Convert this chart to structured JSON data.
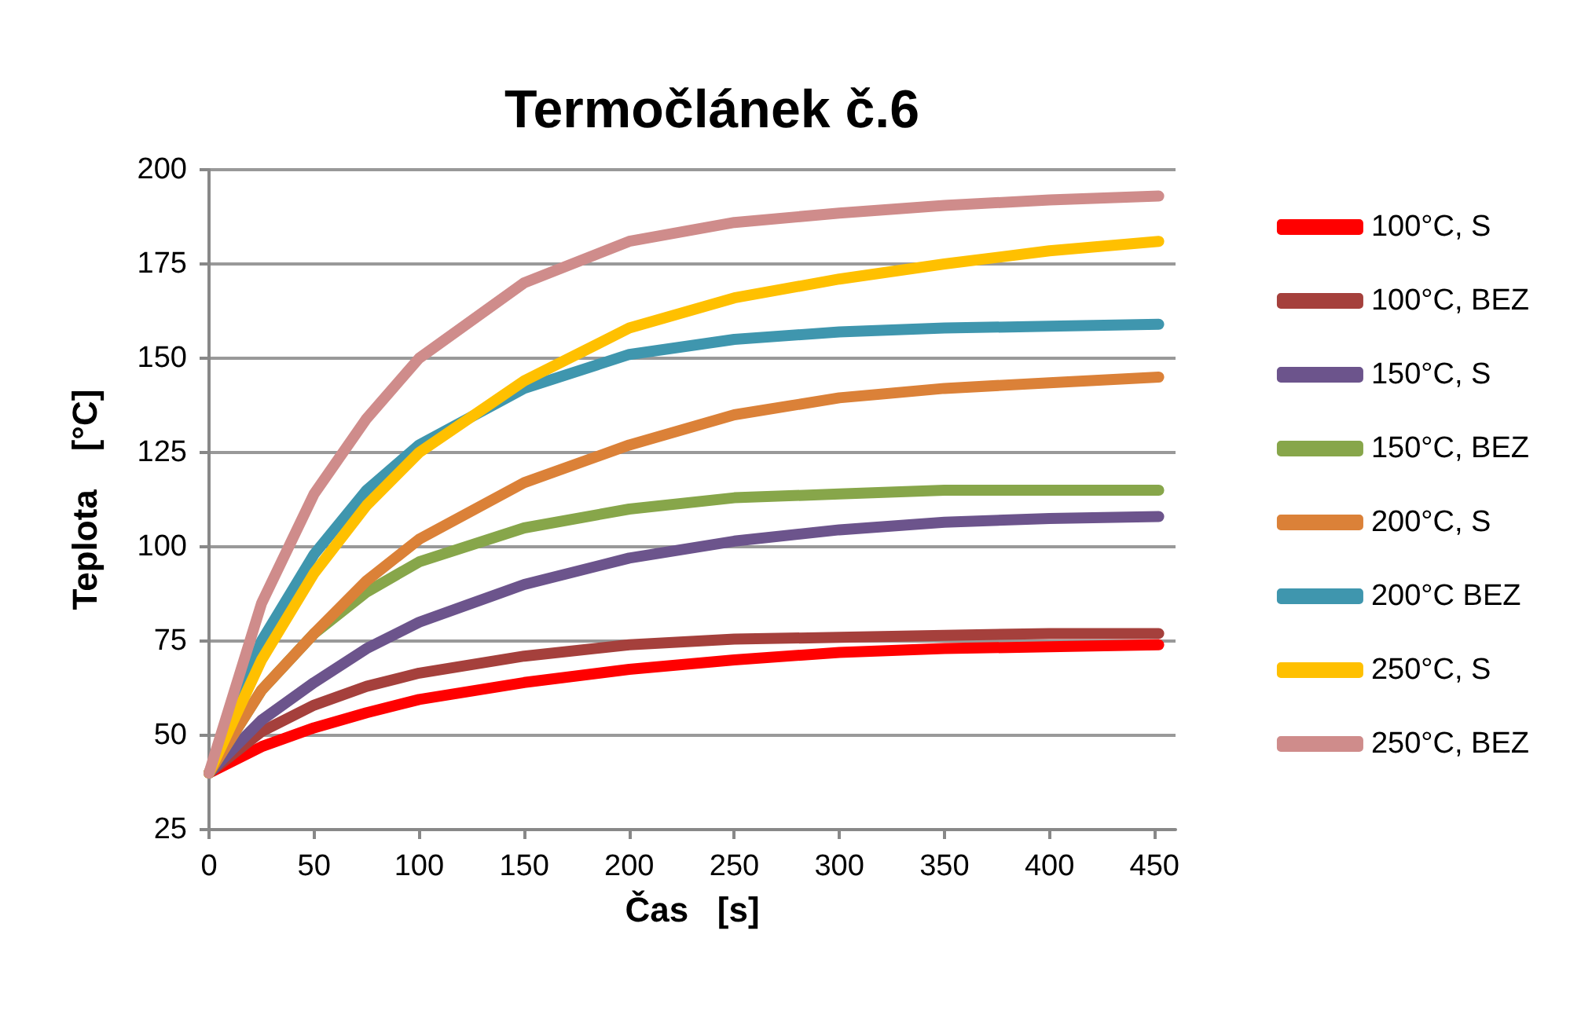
{
  "chart_data": {
    "type": "line",
    "title": "Termočlánek č.6",
    "xlabel": "Čas   [s]",
    "ylabel": "Teplota    [°C]",
    "x": [
      0,
      25,
      50,
      75,
      100,
      150,
      200,
      250,
      300,
      350,
      400,
      452
    ],
    "series": [
      {
        "name": "100°C, S",
        "color": "#ff0000",
        "values": [
          40,
          47,
          52,
          56,
          59.5,
          64,
          67.5,
          70,
          72,
          73,
          73.5,
          74
        ]
      },
      {
        "name": "100°C, BEZ",
        "color": "#a5403c",
        "values": [
          40,
          51,
          58,
          63,
          66.5,
          71,
          74,
          75.5,
          76,
          76.5,
          77,
          77
        ]
      },
      {
        "name": "150°C, S",
        "color": "#6c548c",
        "values": [
          40,
          54,
          64,
          73,
          80,
          90,
          97,
          101.5,
          104.5,
          106.5,
          107.5,
          108
        ]
      },
      {
        "name": "150°C, BEZ",
        "color": "#87a64a",
        "values": [
          40,
          62,
          77,
          88,
          96,
          105,
          110,
          113,
          114,
          115,
          115,
          115
        ]
      },
      {
        "name": "200°C, S",
        "color": "#db8138",
        "values": [
          40,
          62,
          77,
          91,
          102,
          117,
          127,
          135,
          139.5,
          142,
          143.5,
          145
        ]
      },
      {
        "name": "200°C BEZ",
        "color": "#3f96ae",
        "values": [
          40,
          75,
          98,
          115,
          127,
          142,
          151,
          155,
          157,
          158,
          158.5,
          159
        ]
      },
      {
        "name": "250°C, S",
        "color": "#ffc000",
        "values": [
          40,
          70,
          93,
          111,
          125,
          144,
          158,
          166,
          171,
          175,
          178.5,
          181
        ]
      },
      {
        "name": "250°C, BEZ",
        "color": "#cf8c8b",
        "values": [
          40,
          85,
          114,
          134,
          150,
          170,
          181,
          186,
          188.5,
          190.5,
          192,
          193
        ]
      }
    ],
    "xlim": [
      0,
      460
    ],
    "xticks": [
      0,
      50,
      100,
      150,
      200,
      250,
      300,
      350,
      400,
      450
    ],
    "ylim": [
      25,
      200
    ],
    "yticks": [
      25,
      50,
      75,
      100,
      125,
      150,
      175,
      200
    ],
    "grid": "y",
    "legend": "right",
    "marker": "none",
    "line_style": "solid"
  }
}
